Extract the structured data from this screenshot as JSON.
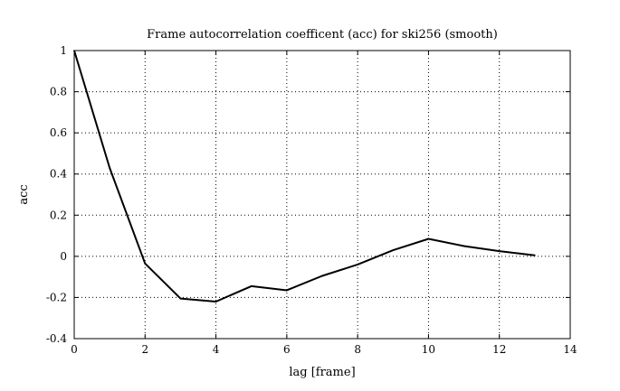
{
  "chart_data": {
    "type": "line",
    "title": "Frame autocorrelation coefficent (acc) for ski256 (smooth)",
    "xlabel": "lag [frame]",
    "ylabel": "acc",
    "xlim": [
      0,
      14
    ],
    "ylim": [
      -0.4,
      1
    ],
    "x_ticks": [
      "0",
      "2",
      "4",
      "6",
      "8",
      "10",
      "12",
      "14"
    ],
    "y_ticks": [
      "1",
      "0.8",
      "0.6",
      "0.4",
      "0.2",
      "0",
      "-0.2",
      "-0.4"
    ],
    "grid": true,
    "grid_style": "dotted",
    "line_color": "#000000",
    "series": [
      {
        "x": [
          0,
          1,
          2,
          3,
          4,
          5,
          6,
          7,
          8,
          9,
          10,
          11,
          12,
          13
        ],
        "values": [
          1.0,
          0.43,
          -0.035,
          -0.205,
          -0.22,
          -0.145,
          -0.165,
          -0.095,
          -0.04,
          0.03,
          0.085,
          0.05,
          0.025,
          0.005
        ]
      }
    ]
  }
}
